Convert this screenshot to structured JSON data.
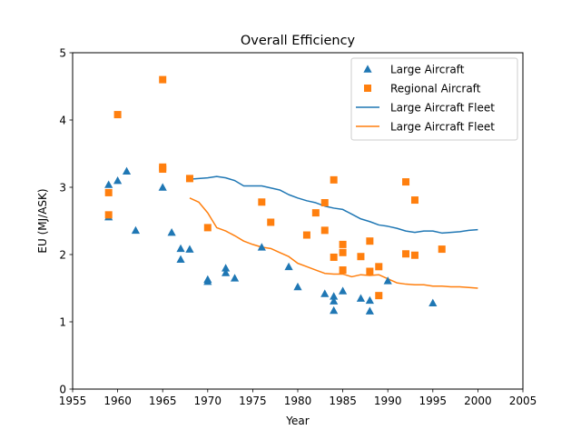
{
  "chart_data": {
    "type": "scatter",
    "title": "Overall Efficiency",
    "xlabel": "Year",
    "ylabel": "EU (MJ/ASK)",
    "xlim": [
      1955,
      2005
    ],
    "ylim": [
      0,
      5
    ],
    "xticks": [
      1955,
      1960,
      1965,
      1970,
      1975,
      1980,
      1985,
      1990,
      1995,
      2000,
      2005
    ],
    "yticks": [
      0,
      1,
      2,
      3,
      4,
      5
    ],
    "grid": false,
    "legend_position": "top-right",
    "series": [
      {
        "name": "Large Aircraft",
        "kind": "scatter",
        "marker": "triangle",
        "color": "#1f77b4",
        "points": [
          [
            1959,
            3.04
          ],
          [
            1959,
            2.56
          ],
          [
            1960,
            3.1
          ],
          [
            1961,
            3.24
          ],
          [
            1962,
            2.36
          ],
          [
            1965,
            3.0
          ],
          [
            1966,
            2.33
          ],
          [
            1967,
            2.09
          ],
          [
            1967,
            1.93
          ],
          [
            1968,
            2.08
          ],
          [
            1970,
            1.63
          ],
          [
            1970,
            1.6
          ],
          [
            1972,
            1.8
          ],
          [
            1972,
            1.73
          ],
          [
            1973,
            1.65
          ],
          [
            1976,
            2.11
          ],
          [
            1979,
            1.82
          ],
          [
            1980,
            1.52
          ],
          [
            1983,
            1.42
          ],
          [
            1984,
            1.38
          ],
          [
            1984,
            1.31
          ],
          [
            1984,
            1.17
          ],
          [
            1985,
            1.46
          ],
          [
            1987,
            1.35
          ],
          [
            1988,
            1.32
          ],
          [
            1988,
            1.16
          ],
          [
            1990,
            1.61
          ],
          [
            1995,
            1.28
          ]
        ]
      },
      {
        "name": "Regional Aircraft",
        "kind": "scatter",
        "marker": "square",
        "color": "#ff7f0e",
        "points": [
          [
            1959,
            2.92
          ],
          [
            1959,
            2.59
          ],
          [
            1960,
            4.08
          ],
          [
            1965,
            4.6
          ],
          [
            1965,
            3.3
          ],
          [
            1965,
            3.27
          ],
          [
            1968,
            3.13
          ],
          [
            1970,
            2.4
          ],
          [
            1976,
            2.78
          ],
          [
            1977,
            2.48
          ],
          [
            1981,
            2.29
          ],
          [
            1982,
            2.62
          ],
          [
            1983,
            2.77
          ],
          [
            1983,
            2.36
          ],
          [
            1984,
            3.11
          ],
          [
            1984,
            1.96
          ],
          [
            1985,
            2.15
          ],
          [
            1985,
            2.03
          ],
          [
            1985,
            1.77
          ],
          [
            1987,
            1.97
          ],
          [
            1988,
            2.2
          ],
          [
            1988,
            1.75
          ],
          [
            1989,
            1.82
          ],
          [
            1989,
            1.39
          ],
          [
            1992,
            3.08
          ],
          [
            1992,
            2.01
          ],
          [
            1993,
            2.81
          ],
          [
            1993,
            1.99
          ],
          [
            1996,
            2.08
          ]
        ]
      },
      {
        "name": "Large Aircraft Fleet",
        "kind": "line",
        "color": "#1f77b4",
        "points": [
          [
            1968,
            3.12
          ],
          [
            1969,
            3.13
          ],
          [
            1970,
            3.14
          ],
          [
            1971,
            3.16
          ],
          [
            1972,
            3.14
          ],
          [
            1973,
            3.1
          ],
          [
            1974,
            3.02
          ],
          [
            1975,
            3.02
          ],
          [
            1976,
            3.02
          ],
          [
            1977,
            2.99
          ],
          [
            1978,
            2.96
          ],
          [
            1979,
            2.89
          ],
          [
            1980,
            2.84
          ],
          [
            1981,
            2.8
          ],
          [
            1982,
            2.77
          ],
          [
            1983,
            2.72
          ],
          [
            1984,
            2.69
          ],
          [
            1985,
            2.67
          ],
          [
            1986,
            2.6
          ],
          [
            1987,
            2.53
          ],
          [
            1988,
            2.49
          ],
          [
            1989,
            2.44
          ],
          [
            1990,
            2.42
          ],
          [
            1991,
            2.39
          ],
          [
            1992,
            2.35
          ],
          [
            1993,
            2.33
          ],
          [
            1994,
            2.35
          ],
          [
            1995,
            2.35
          ],
          [
            1996,
            2.32
          ],
          [
            1997,
            2.33
          ],
          [
            1998,
            2.34
          ],
          [
            1999,
            2.36
          ],
          [
            2000,
            2.37
          ]
        ]
      },
      {
        "name": "Large Aircraft Fleet",
        "kind": "line",
        "color": "#ff7f0e",
        "points": [
          [
            1968,
            2.84
          ],
          [
            1969,
            2.78
          ],
          [
            1970,
            2.62
          ],
          [
            1971,
            2.4
          ],
          [
            1972,
            2.35
          ],
          [
            1973,
            2.28
          ],
          [
            1974,
            2.2
          ],
          [
            1975,
            2.15
          ],
          [
            1976,
            2.11
          ],
          [
            1977,
            2.09
          ],
          [
            1978,
            2.03
          ],
          [
            1979,
            1.97
          ],
          [
            1980,
            1.87
          ],
          [
            1981,
            1.82
          ],
          [
            1982,
            1.77
          ],
          [
            1983,
            1.72
          ],
          [
            1984,
            1.71
          ],
          [
            1985,
            1.71
          ],
          [
            1986,
            1.67
          ],
          [
            1987,
            1.7
          ],
          [
            1988,
            1.69
          ],
          [
            1989,
            1.7
          ],
          [
            1990,
            1.64
          ],
          [
            1991,
            1.58
          ],
          [
            1992,
            1.56
          ],
          [
            1993,
            1.55
          ],
          [
            1994,
            1.55
          ],
          [
            1995,
            1.53
          ],
          [
            1996,
            1.53
          ],
          [
            1997,
            1.52
          ],
          [
            1998,
            1.52
          ],
          [
            1999,
            1.51
          ],
          [
            2000,
            1.5
          ]
        ]
      }
    ]
  }
}
